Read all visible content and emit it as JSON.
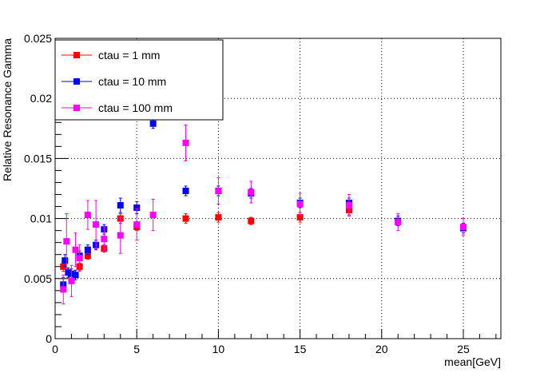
{
  "chart_data": {
    "type": "scatter",
    "title": "",
    "xlabel": "mean[GeV]",
    "ylabel": "Relative Resonance Gamma",
    "xlim": [
      0,
      27.3
    ],
    "ylim": [
      0,
      0.025
    ],
    "x_ticks": [
      "0",
      "5",
      "10",
      "15",
      "20",
      "25"
    ],
    "y_ticks": [
      "0",
      "0.005",
      "0.01",
      "0.015",
      "0.02",
      "0.025"
    ],
    "grid": true,
    "legend_position": "top-left",
    "series": [
      {
        "name": "ctau = 1 mm",
        "color": "#ff0000",
        "points": [
          {
            "x": 0.5,
            "y": 0.006,
            "err": 0.0004
          },
          {
            "x": 1.5,
            "y": 0.006,
            "err": 0.0003
          },
          {
            "x": 2.0,
            "y": 0.0069,
            "err": 0.0003
          },
          {
            "x": 3.0,
            "y": 0.0075,
            "err": 0.0003
          },
          {
            "x": 4.0,
            "y": 0.01,
            "err": 0.0004
          },
          {
            "x": 5.0,
            "y": 0.0093,
            "err": 0.0003
          },
          {
            "x": 8.0,
            "y": 0.01,
            "err": 0.0004
          },
          {
            "x": 10.0,
            "y": 0.0101,
            "err": 0.0004
          },
          {
            "x": 12.0,
            "y": 0.0098,
            "err": 0.0003
          },
          {
            "x": 15.0,
            "y": 0.0101,
            "err": 0.0004
          },
          {
            "x": 18.0,
            "y": 0.0107,
            "err": 0.0004
          }
        ]
      },
      {
        "name": "ctau = 10 mm",
        "color": "#0000ff",
        "points": [
          {
            "x": 0.5,
            "y": 0.0045,
            "err": 0.0006
          },
          {
            "x": 0.6,
            "y": 0.0065,
            "err": 0.0005
          },
          {
            "x": 0.8,
            "y": 0.0055,
            "err": 0.0004
          },
          {
            "x": 1.0,
            "y": 0.0054,
            "err": 0.0004
          },
          {
            "x": 1.25,
            "y": 0.0053,
            "err": 0.0004
          },
          {
            "x": 1.5,
            "y": 0.0069,
            "err": 0.0004
          },
          {
            "x": 2.0,
            "y": 0.0074,
            "err": 0.0004
          },
          {
            "x": 2.5,
            "y": 0.0078,
            "err": 0.0004
          },
          {
            "x": 3.0,
            "y": 0.0091,
            "err": 0.0004
          },
          {
            "x": 4.0,
            "y": 0.0111,
            "err": 0.0006
          },
          {
            "x": 5.0,
            "y": 0.0109,
            "err": 0.0005
          },
          {
            "x": 6.0,
            "y": 0.0179,
            "err": 0.0004
          },
          {
            "x": 8.0,
            "y": 0.0123,
            "err": 0.0004
          },
          {
            "x": 10.0,
            "y": 0.0123,
            "err": 0.0004
          },
          {
            "x": 12.0,
            "y": 0.0121,
            "err": 0.0004
          },
          {
            "x": 15.0,
            "y": 0.0113,
            "err": 0.0004
          },
          {
            "x": 18.0,
            "y": 0.0113,
            "err": 0.0004
          },
          {
            "x": 21.0,
            "y": 0.0098,
            "err": 0.0004
          },
          {
            "x": 25.0,
            "y": 0.0092,
            "err": 0.0004
          }
        ]
      },
      {
        "name": "ctau = 100 mm",
        "color": "#ff00ff",
        "points": [
          {
            "x": 0.5,
            "y": 0.0041,
            "err": 0.0012
          },
          {
            "x": 0.7,
            "y": 0.0081,
            "err": 0.0023
          },
          {
            "x": 1.0,
            "y": 0.0048,
            "err": 0.0013
          },
          {
            "x": 1.25,
            "y": 0.0074,
            "err": 0.0014
          },
          {
            "x": 1.5,
            "y": 0.0067,
            "err": 0.0011
          },
          {
            "x": 2.0,
            "y": 0.0103,
            "err": 0.0012
          },
          {
            "x": 2.5,
            "y": 0.0095,
            "err": 0.002
          },
          {
            "x": 3.0,
            "y": 0.0083,
            "err": 0.001
          },
          {
            "x": 4.0,
            "y": 0.0086,
            "err": 0.0015
          },
          {
            "x": 5.0,
            "y": 0.0095,
            "err": 0.0013
          },
          {
            "x": 6.0,
            "y": 0.0103,
            "err": 0.0013
          },
          {
            "x": 8.0,
            "y": 0.0163,
            "err": 0.0015
          },
          {
            "x": 10.0,
            "y": 0.0123,
            "err": 0.0011
          },
          {
            "x": 12.0,
            "y": 0.0122,
            "err": 0.0009
          },
          {
            "x": 15.0,
            "y": 0.0112,
            "err": 0.0009
          },
          {
            "x": 18.0,
            "y": 0.0111,
            "err": 0.0009
          },
          {
            "x": 21.0,
            "y": 0.0097,
            "err": 0.0007
          },
          {
            "x": 25.0,
            "y": 0.0093,
            "err": 0.0007
          }
        ]
      }
    ]
  }
}
